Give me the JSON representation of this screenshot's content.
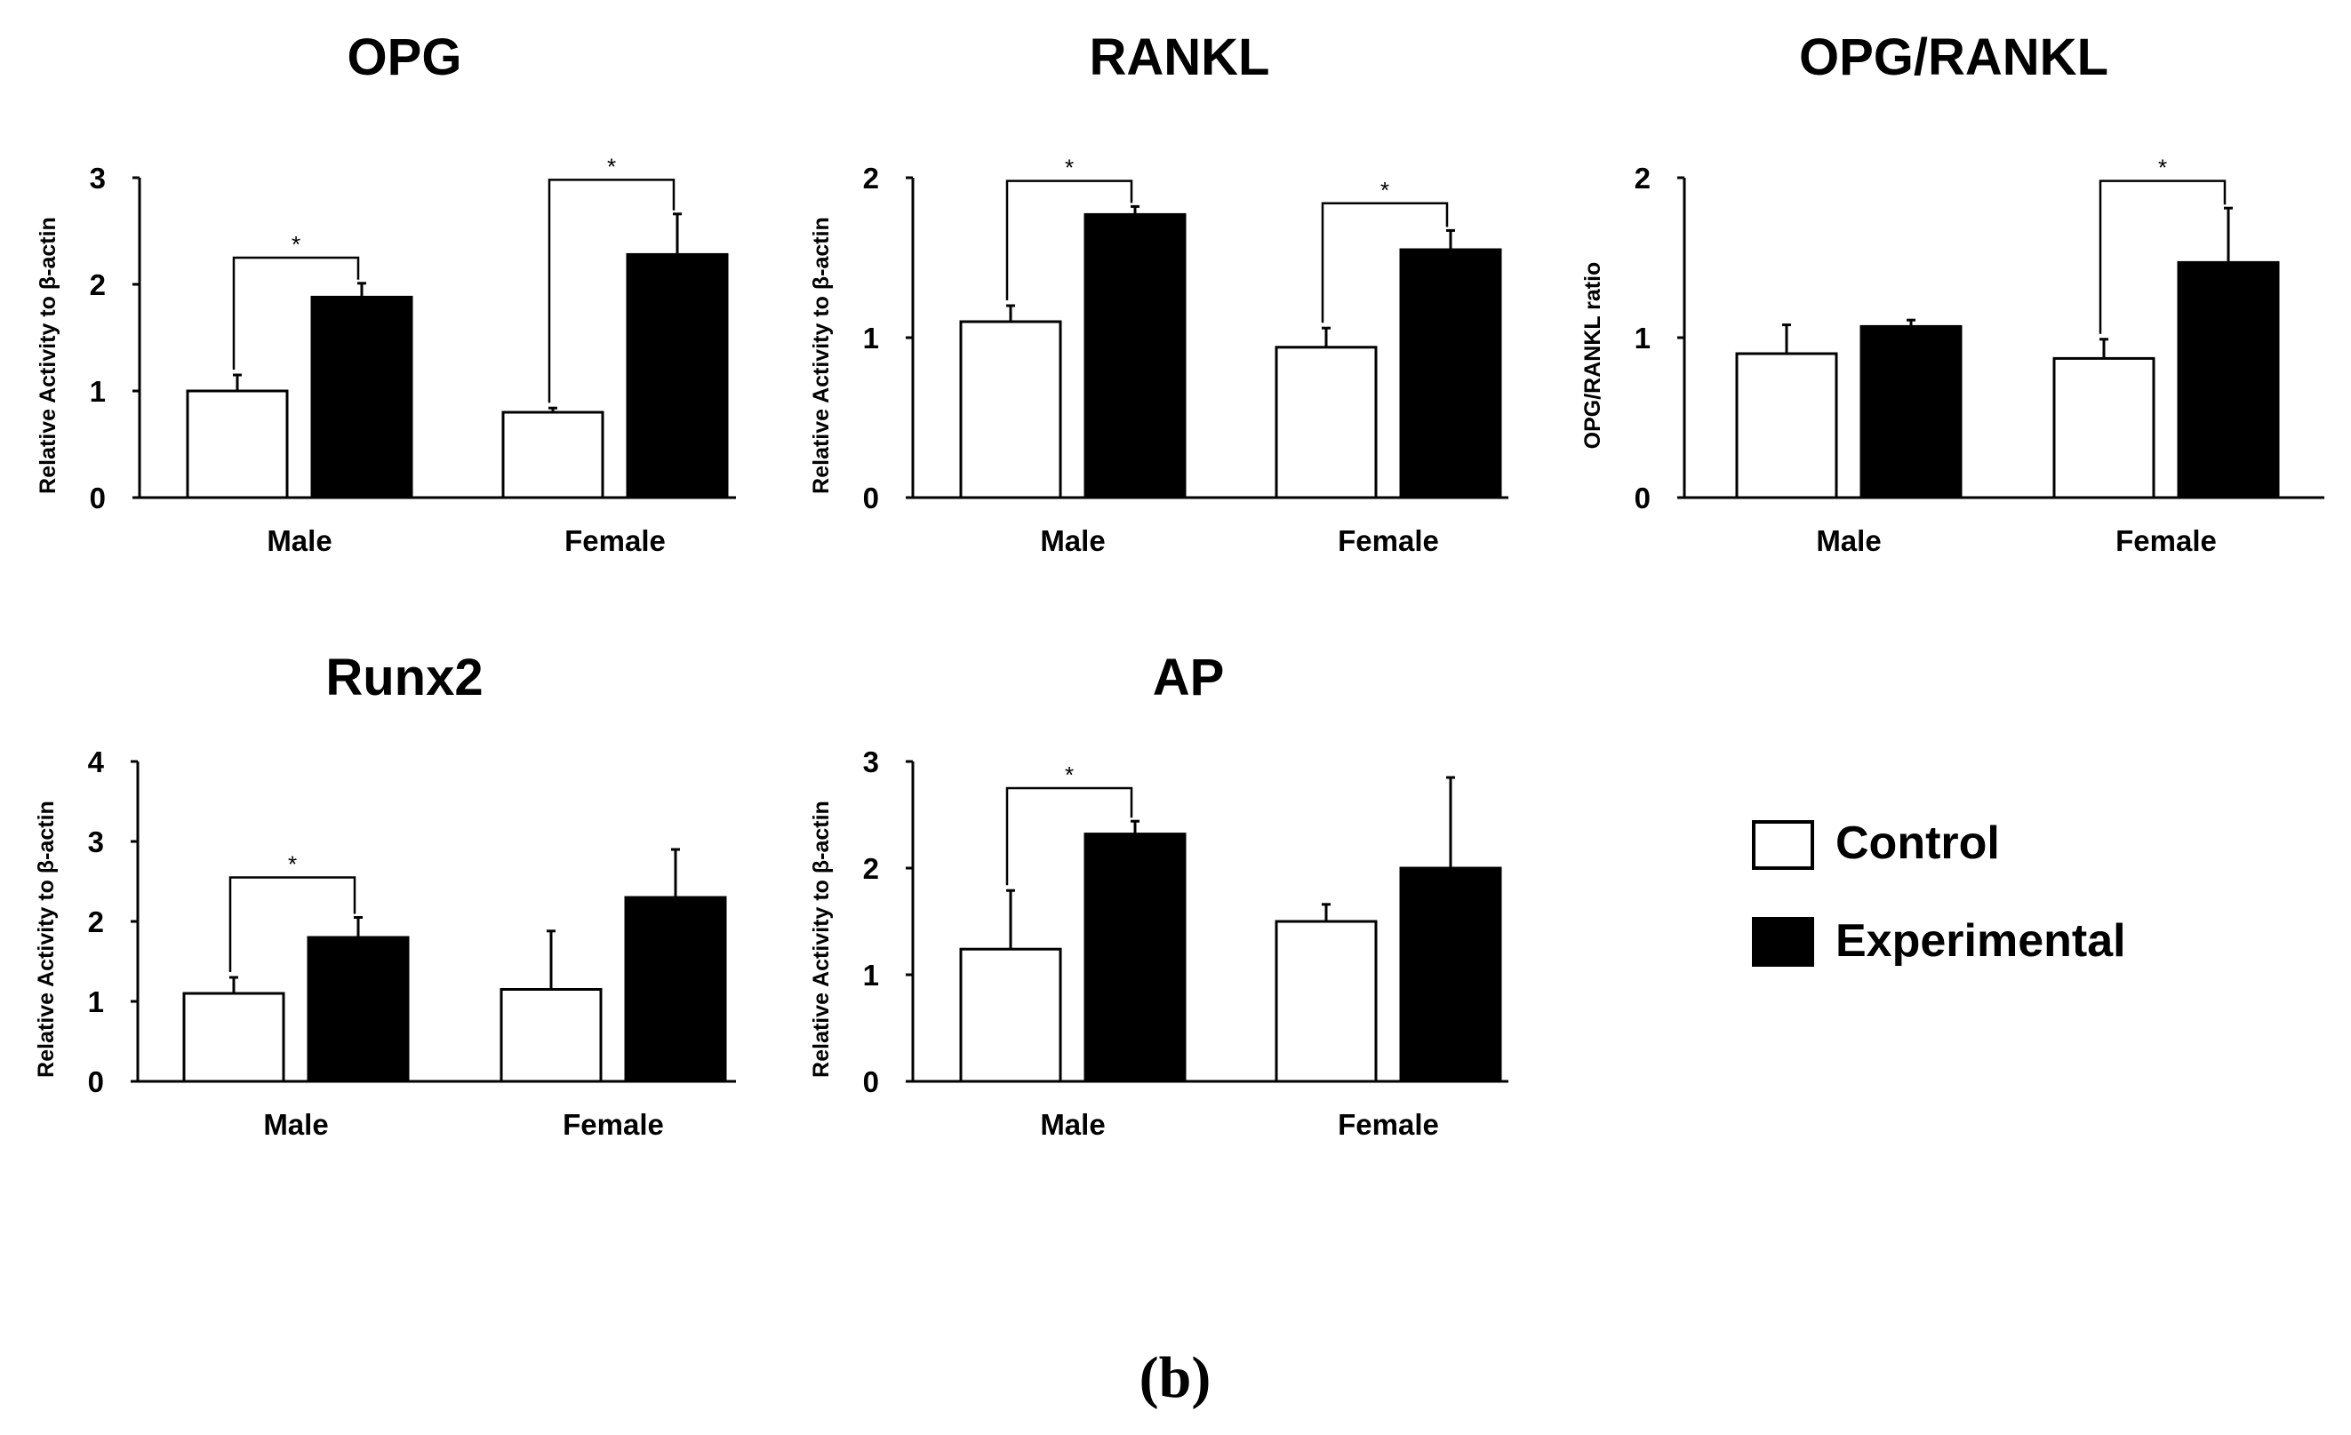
{
  "chart_data": [
    {
      "type": "bar",
      "title": "OPG",
      "xlabel": "",
      "ylabel": "Relative Activity to β-actin",
      "ylim": [
        0,
        3
      ],
      "yticks": [
        "0",
        "1",
        "2",
        "3"
      ],
      "categories": [
        "Male",
        "Female"
      ],
      "series": [
        {
          "name": "Control",
          "values": [
            1.0,
            0.8
          ],
          "errors": [
            0.15,
            0.04
          ]
        },
        {
          "name": "Experimental",
          "values": [
            1.88,
            2.28
          ],
          "errors": [
            0.13,
            0.38
          ]
        }
      ],
      "significance": [
        {
          "category": "Male",
          "label": "*",
          "top": 2.25
        },
        {
          "category": "Female",
          "label": "*",
          "top": 2.98
        }
      ]
    },
    {
      "type": "bar",
      "title": "RANKL",
      "xlabel": "",
      "ylabel": "Relative Activity to β-actin",
      "ylim": [
        0,
        2
      ],
      "yticks": [
        "0",
        "1",
        "2"
      ],
      "categories": [
        "Male",
        "Female"
      ],
      "series": [
        {
          "name": "Control",
          "values": [
            1.1,
            0.94
          ],
          "errors": [
            0.1,
            0.12
          ]
        },
        {
          "name": "Experimental",
          "values": [
            1.77,
            1.55
          ],
          "errors": [
            0.05,
            0.12
          ]
        }
      ],
      "significance": [
        {
          "category": "Male",
          "label": "*",
          "top": 1.98
        },
        {
          "category": "Female",
          "label": "*",
          "top": 1.84
        }
      ]
    },
    {
      "type": "bar",
      "title": "OPG/RANKL",
      "xlabel": "",
      "ylabel": "OPG/RANKL ratio",
      "ylim": [
        0,
        2
      ],
      "yticks": [
        "0",
        "1",
        "2"
      ],
      "categories": [
        "Male",
        "Female"
      ],
      "series": [
        {
          "name": "Control",
          "values": [
            0.9,
            0.87
          ],
          "errors": [
            0.18,
            0.12
          ]
        },
        {
          "name": "Experimental",
          "values": [
            1.07,
            1.47
          ],
          "errors": [
            0.04,
            0.34
          ]
        }
      ],
      "significance": [
        {
          "category": "Female",
          "label": "*",
          "top": 1.98
        }
      ]
    },
    {
      "type": "bar",
      "title": "Runx2",
      "xlabel": "",
      "ylabel": "Relative Activity to β-actin",
      "ylim": [
        0,
        4
      ],
      "yticks": [
        "0",
        "1",
        "2",
        "3",
        "4"
      ],
      "categories": [
        "Male",
        "Female"
      ],
      "series": [
        {
          "name": "Control",
          "values": [
            1.1,
            1.15
          ],
          "errors": [
            0.2,
            0.73
          ]
        },
        {
          "name": "Experimental",
          "values": [
            1.8,
            2.3
          ],
          "errors": [
            0.25,
            0.6
          ]
        }
      ],
      "significance": [
        {
          "category": "Male",
          "label": "*",
          "top": 2.55
        }
      ]
    },
    {
      "type": "bar",
      "title": "AP",
      "xlabel": "",
      "ylabel": "Relative Activity to β-actin",
      "ylim": [
        0,
        3
      ],
      "yticks": [
        "0",
        "1",
        "2",
        "3"
      ],
      "categories": [
        "Male",
        "Female"
      ],
      "series": [
        {
          "name": "Control",
          "values": [
            1.24,
            1.5
          ],
          "errors": [
            0.55,
            0.16
          ]
        },
        {
          "name": "Experimental",
          "values": [
            2.32,
            2.0
          ],
          "errors": [
            0.12,
            0.85
          ]
        }
      ],
      "significance": [
        {
          "category": "Male",
          "label": "*",
          "top": 2.75
        }
      ]
    }
  ],
  "legend": {
    "items": [
      {
        "label": "Control",
        "fill": "#ffffff"
      },
      {
        "label": "Experimental",
        "fill": "#000000"
      }
    ]
  },
  "caption": "(b)",
  "colors": {
    "control_fill": "#ffffff",
    "experimental_fill": "#000000",
    "stroke": "#000000"
  }
}
